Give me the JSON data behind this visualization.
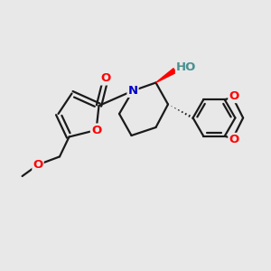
{
  "background_color": "#e8e8e8",
  "bond_color": "#1a1a1a",
  "atom_colors": {
    "O": "#ff0000",
    "N": "#0000cc",
    "C": "#1a1a1a",
    "HO": "#4a9090"
  },
  "lw": 1.6,
  "font_size": 9.5
}
